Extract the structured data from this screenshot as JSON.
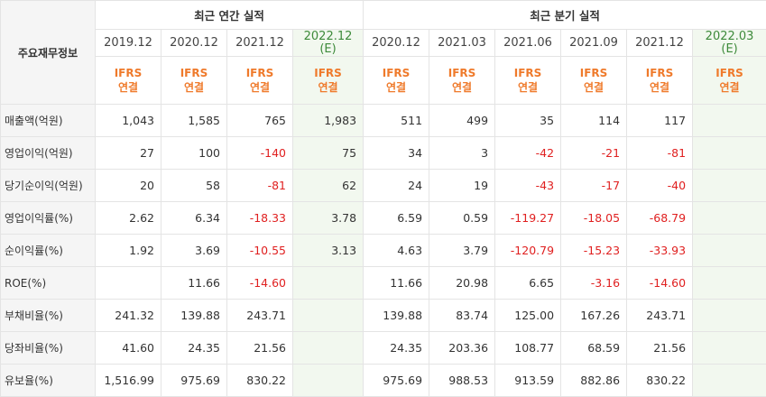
{
  "corner_label": "주요재무정보",
  "groups": {
    "annual": "최근 연간 실적",
    "quarterly": "최근 분기 실적"
  },
  "periods": {
    "annual": [
      "2019.12",
      "2020.12",
      "2021.12",
      "2022.12"
    ],
    "annual_est": "(E)",
    "quarterly": [
      "2020.12",
      "2021.03",
      "2021.06",
      "2021.09",
      "2021.12",
      "2022.03"
    ],
    "quarterly_est": "(E)"
  },
  "ifrs": {
    "line1": "IFRS",
    "line2": "연결"
  },
  "rows": [
    {
      "label": "매출액(억원)",
      "annual": [
        "1,043",
        "1,585",
        "765",
        "1,983"
      ],
      "quarterly": [
        "511",
        "499",
        "35",
        "114",
        "117",
        ""
      ]
    },
    {
      "label": "영업이익(억원)",
      "annual": [
        "27",
        "100",
        "-140",
        "75"
      ],
      "quarterly": [
        "34",
        "3",
        "-42",
        "-21",
        "-81",
        ""
      ]
    },
    {
      "label": "당기순이익(억원)",
      "annual": [
        "20",
        "58",
        "-81",
        "62"
      ],
      "quarterly": [
        "24",
        "19",
        "-43",
        "-17",
        "-40",
        ""
      ]
    },
    {
      "label": "영업이익률(%)",
      "annual": [
        "2.62",
        "6.34",
        "-18.33",
        "3.78"
      ],
      "quarterly": [
        "6.59",
        "0.59",
        "-119.27",
        "-18.05",
        "-68.79",
        ""
      ]
    },
    {
      "label": "순이익률(%)",
      "annual": [
        "1.92",
        "3.69",
        "-10.55",
        "3.13"
      ],
      "quarterly": [
        "4.63",
        "3.79",
        "-120.79",
        "-15.23",
        "-33.93",
        ""
      ]
    },
    {
      "label": "ROE(%)",
      "annual": [
        "",
        "11.66",
        "-14.60",
        ""
      ],
      "quarterly": [
        "11.66",
        "20.98",
        "6.65",
        "-3.16",
        "-14.60",
        ""
      ]
    },
    {
      "label": "부채비율(%)",
      "annual": [
        "241.32",
        "139.88",
        "243.71",
        ""
      ],
      "quarterly": [
        "139.88",
        "83.74",
        "125.00",
        "167.26",
        "243.71",
        ""
      ]
    },
    {
      "label": "당좌비율(%)",
      "annual": [
        "41.60",
        "24.35",
        "21.56",
        ""
      ],
      "quarterly": [
        "24.35",
        "203.36",
        "108.77",
        "68.59",
        "21.56",
        ""
      ]
    },
    {
      "label": "유보율(%)",
      "annual": [
        "1,516.99",
        "975.69",
        "830.22",
        ""
      ],
      "quarterly": [
        "975.69",
        "988.53",
        "913.59",
        "882.86",
        "830.22",
        ""
      ]
    }
  ],
  "colors": {
    "negative": "#e02020",
    "ifrs": "#ef7a2b",
    "estimate_text": "#3d8a3a",
    "estimate_bg": "#f2f8ef",
    "label_bg": "#f5f5f5"
  }
}
